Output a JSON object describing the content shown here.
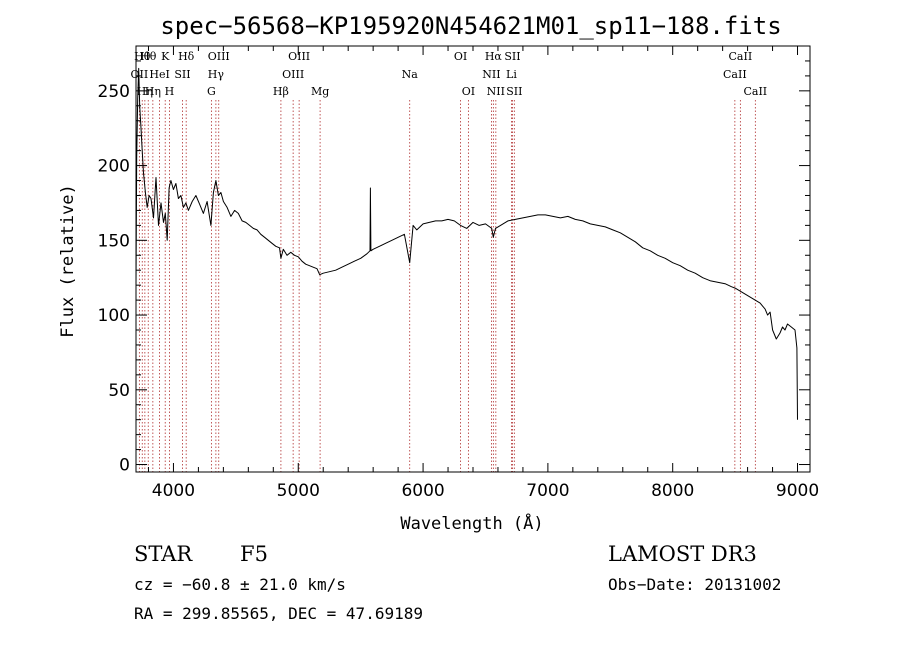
{
  "chart_data": {
    "type": "line",
    "title": "spec−56568−KP195920N454621M01_sp11−188.fits",
    "xlabel": "Wavelength (Å)",
    "ylabel": "Flux (relative)",
    "xlim": [
      3700,
      9100
    ],
    "ylim": [
      -5,
      280
    ],
    "xticks": [
      4000,
      5000,
      6000,
      7000,
      8000,
      9000
    ],
    "yticks": [
      0,
      50,
      100,
      150,
      200,
      250
    ],
    "xtick_labels": [
      "4000",
      "5000",
      "6000",
      "7000",
      "8000",
      "9000"
    ],
    "ytick_labels": [
      "0",
      "50",
      "100",
      "150",
      "200",
      "250"
    ],
    "series": [
      {
        "color": "#000000",
        "x": [
          3700,
          3706,
          3714,
          3722,
          3730,
          3740,
          3750,
          3760,
          3775,
          3790,
          3805,
          3820,
          3840,
          3860,
          3880,
          3900,
          3920,
          3935,
          3950,
          3965,
          3980,
          4000,
          4020,
          4040,
          4060,
          4080,
          4100,
          4120,
          4150,
          4180,
          4210,
          4240,
          4270,
          4300,
          4320,
          4340,
          4360,
          4380,
          4400,
          4430,
          4460,
          4490,
          4520,
          4550,
          4580,
          4610,
          4640,
          4670,
          4700,
          4730,
          4760,
          4790,
          4820,
          4850,
          4861,
          4880,
          4910,
          4940,
          4970,
          5000,
          5030,
          5060,
          5090,
          5120,
          5150,
          5172,
          5200,
          5250,
          5300,
          5350,
          5400,
          5450,
          5500,
          5550,
          5575,
          5578,
          5582,
          5600,
          5650,
          5700,
          5750,
          5800,
          5850,
          5893,
          5920,
          5950,
          6000,
          6050,
          6100,
          6150,
          6200,
          6250,
          6300,
          6350,
          6400,
          6450,
          6500,
          6550,
          6563,
          6580,
          6620,
          6680,
          6740,
          6800,
          6860,
          6920,
          6980,
          7040,
          7100,
          7160,
          7220,
          7280,
          7340,
          7400,
          7460,
          7520,
          7580,
          7640,
          7700,
          7760,
          7820,
          7880,
          7940,
          8000,
          8060,
          8120,
          8180,
          8240,
          8300,
          8360,
          8420,
          8470,
          8500,
          8540,
          8580,
          8620,
          8660,
          8700,
          8740,
          8760,
          8780,
          8800,
          8830,
          8860,
          8880,
          8900,
          8920,
          8950,
          8980,
          8995,
          9000
        ],
        "y": [
          120,
          205,
          245,
          265,
          240,
          225,
          210,
          195,
          182,
          172,
          180,
          178,
          165,
          192,
          160,
          175,
          162,
          168,
          150,
          185,
          190,
          184,
          188,
          178,
          180,
          172,
          175,
          170,
          176,
          180,
          174,
          168,
          176,
          160,
          182,
          190,
          180,
          182,
          176,
          172,
          166,
          170,
          168,
          163,
          162,
          160,
          158,
          157,
          154,
          152,
          150,
          148,
          146,
          145,
          138,
          144,
          140,
          142,
          140,
          139,
          136,
          134,
          133,
          132,
          131,
          127,
          128,
          129,
          130,
          132,
          134,
          136,
          138,
          141,
          143,
          185,
          143,
          144,
          146,
          148,
          150,
          152,
          154,
          135,
          160,
          157,
          161,
          162,
          163,
          163,
          164,
          163,
          160,
          158,
          162,
          160,
          161,
          158,
          152,
          158,
          160,
          163,
          164,
          165,
          166,
          167,
          167,
          166,
          165,
          166,
          164,
          163,
          161,
          160,
          159,
          157,
          155,
          152,
          149,
          145,
          143,
          140,
          138,
          135,
          133,
          130,
          128,
          125,
          123,
          122,
          121,
          119,
          118,
          116,
          114,
          112,
          110,
          108,
          104,
          100,
          102,
          90,
          84,
          88,
          92,
          90,
          94,
          92,
          90,
          78,
          30
        ]
      }
    ],
    "lines": [
      {
        "x": 3727,
        "label": "OII",
        "row": 1
      },
      {
        "x": 3750,
        "label": "Hθ",
        "row": 0
      },
      {
        "x": 3771,
        "label": "Hη",
        "row": 2
      },
      {
        "x": 3798,
        "label": "Hθ",
        "row": 0
      },
      {
        "x": 3835,
        "label": "Hη",
        "row": 2
      },
      {
        "x": 3889,
        "label": "HeI",
        "row": 1
      },
      {
        "x": 3934,
        "label": "K",
        "row": 0
      },
      {
        "x": 3968,
        "label": "H",
        "row": 2
      },
      {
        "x": 4072,
        "label": "SII",
        "row": 1
      },
      {
        "x": 4102,
        "label": "Hδ",
        "row": 0
      },
      {
        "x": 4304,
        "label": "G",
        "row": 2
      },
      {
        "x": 4340,
        "label": "Hγ",
        "row": 1
      },
      {
        "x": 4363,
        "label": "OIII",
        "row": 0
      },
      {
        "x": 4861,
        "label": "Hβ",
        "row": 2
      },
      {
        "x": 4959,
        "label": "OIII",
        "row": 1
      },
      {
        "x": 5007,
        "label": "OIII",
        "row": 0
      },
      {
        "x": 5175,
        "label": "Mg",
        "row": 2
      },
      {
        "x": 5893,
        "label": "Na",
        "row": 1
      },
      {
        "x": 6300,
        "label": "OI",
        "row": 0
      },
      {
        "x": 6363,
        "label": "OI",
        "row": 2
      },
      {
        "x": 6548,
        "label": "NII",
        "row": 1
      },
      {
        "x": 6563,
        "label": "Hα",
        "row": 0
      },
      {
        "x": 6583,
        "label": "NII",
        "row": 2
      },
      {
        "x": 6708,
        "label": "Li",
        "row": 1
      },
      {
        "x": 6716,
        "label": "SII",
        "row": 0
      },
      {
        "x": 6731,
        "label": "SII",
        "row": 2
      },
      {
        "x": 8498,
        "label": "CaII",
        "row": 1
      },
      {
        "x": 8542,
        "label": "CaII",
        "row": 0
      },
      {
        "x": 8662,
        "label": "CaII",
        "row": 2
      }
    ]
  },
  "info": {
    "object_type": "STAR",
    "subclass": "F5",
    "survey": "LAMOST DR3",
    "redshift": "cz = −60.8 ± 21.0 km/s",
    "obs_date": "Obs−Date: 20131002",
    "coords": "RA = 299.85565, DEC =  47.69189"
  }
}
